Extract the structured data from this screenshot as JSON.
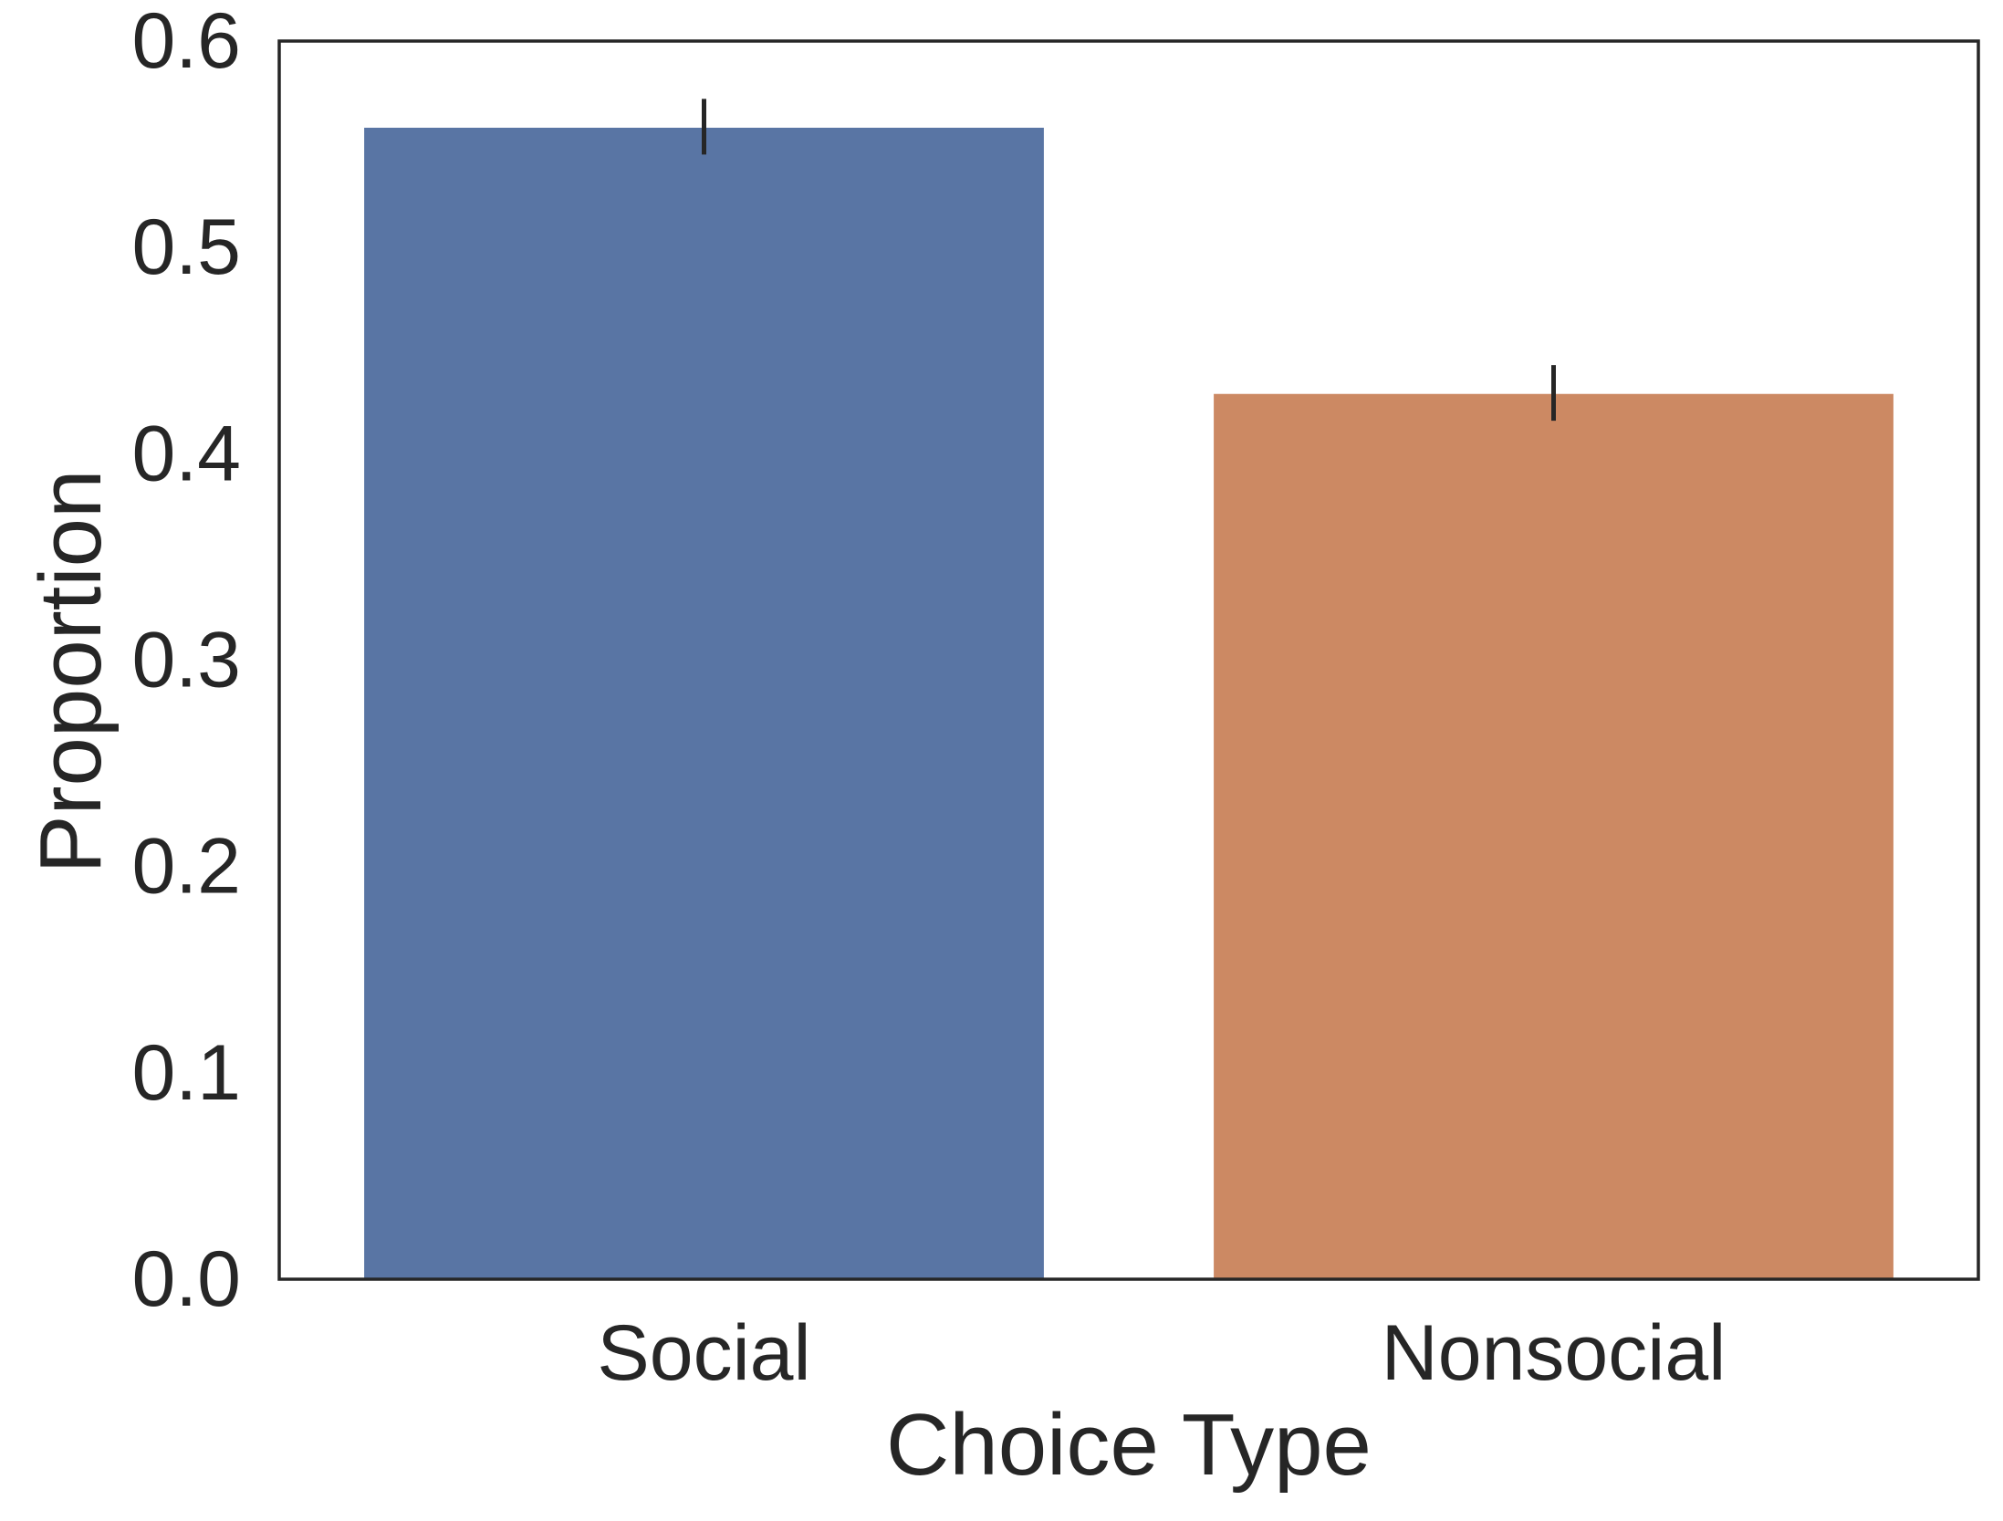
{
  "chart_data": {
    "type": "bar",
    "categories": [
      "Social",
      "Nonsocial"
    ],
    "values": [
      0.558,
      0.429
    ],
    "error_bars": [
      {
        "low": 0.545,
        "high": 0.572
      },
      {
        "low": 0.416,
        "high": 0.443
      }
    ],
    "colors": [
      "#5975a4",
      "#cc8963"
    ],
    "error_bar_color": "#262626",
    "xlabel": "Choice Type",
    "ylabel": "Proportion",
    "ylim": [
      0,
      0.6
    ],
    "yticks": [
      "0.0",
      "0.1",
      "0.2",
      "0.3",
      "0.4",
      "0.5",
      "0.6"
    ],
    "grid": false,
    "legend": "none"
  }
}
